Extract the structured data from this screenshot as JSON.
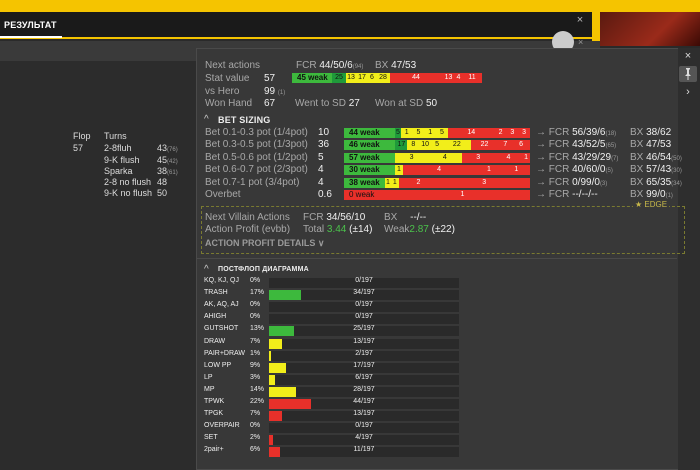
{
  "background": {
    "tab_result": "РЕЗУЛЬТАТ",
    "close_glyph": "×",
    "stats": {
      "flop_label": "Flop",
      "flop_value": "57",
      "turns_label": "Turns",
      "turns": [
        {
          "name": "2-8fluh",
          "value": "43",
          "sample": "(76)"
        },
        {
          "name": "9-K flush",
          "value": "45",
          "sample": "(42)"
        },
        {
          "name": "Sparka",
          "value": "38",
          "sample": "(61)"
        },
        {
          "name": "2-8 no flush",
          "value": "48",
          "sample": ""
        },
        {
          "name": "9-K no flush",
          "value": "50",
          "sample": ""
        }
      ]
    }
  },
  "hud": {
    "next_actions": {
      "label": "Next actions",
      "fcr_label": "FCR",
      "fcr_value": "44/50/6",
      "fcr_sample": "(94)",
      "bx_label": "BX",
      "bx_value": "47/53"
    },
    "stat_value": {
      "label": "Stat value",
      "value": "57",
      "weak_label": "45 weak",
      "segs": [
        "25",
        "13",
        "17",
        "6",
        "28",
        "44",
        "13",
        "4",
        "11"
      ]
    },
    "vs_hero": {
      "label": "vs Hero",
      "value": "99",
      "sample": "(1)"
    },
    "won_hand": {
      "label": "Won Hand",
      "value": "67"
    },
    "went_sd": {
      "label": "Went to SD",
      "value": "27"
    },
    "won_sd": {
      "label": "Won at SD",
      "value": "50"
    },
    "bet_sizing": {
      "title": "BET SIZING",
      "rows": [
        {
          "label": "Bet 0.1-0.3 pot (1/4pot)",
          "value": "10",
          "weak": "44 weak",
          "segs": [
            "5",
            "1",
            "5",
            "1",
            "5",
            "14",
            "2",
            "3",
            "3"
          ],
          "fcr": "56/39/6",
          "fcr_sample": "(18)",
          "bx": "38/62",
          "bx_sample": ""
        },
        {
          "label": "Bet 0.3-0.5 pot (1/3pot)",
          "value": "36",
          "weak": "46 weak",
          "segs": [
            "17",
            "8",
            "10",
            "5",
            "22",
            "22",
            "7",
            "6"
          ],
          "fcr": "43/52/5",
          "fcr_sample": "(65)",
          "bx": "47/53",
          "bx_sample": ""
        },
        {
          "label": "Bet 0.5-0.6 pot (1/2pot)",
          "value": "5",
          "weak": "57 weak",
          "segs": [
            "3",
            "4",
            "3",
            "4",
            "1"
          ],
          "fcr": "43/29/29",
          "fcr_sample": "(7)",
          "bx": "46/54",
          "bx_sample": "(50)"
        },
        {
          "label": "Bet 0.6-0.7 pot (2/3pot)",
          "value": "4",
          "weak": "30 weak",
          "segs": [
            "1",
            "4",
            "1",
            "1"
          ],
          "fcr": "40/60/0",
          "fcr_sample": "(5)",
          "bx": "57/43",
          "bx_sample": "(30)"
        },
        {
          "label": "Bet 0.7-1 pot   (3/4pot)",
          "value": "4",
          "weak": "38 weak",
          "segs": [
            "1",
            "1",
            "2",
            "3"
          ],
          "fcr": "0/99/0",
          "fcr_sample": "(3)",
          "bx": "65/35",
          "bx_sample": "(34)"
        },
        {
          "label": "Overbet",
          "value": "0.6",
          "weak": "0 weak",
          "segs": [
            "1"
          ],
          "fcr": "--/--/--",
          "fcr_sample": "",
          "bx": "99/0",
          "bx_sample": "(1)"
        }
      ],
      "arrow": "→",
      "fcr_label": "FCR",
      "bx_label": "BX"
    },
    "edge": {
      "label": "EDGE",
      "star": "★",
      "nva_label": "Next Villain Actions",
      "nva_fcr_label": "FCR",
      "nva_fcr_value": "34/56/10",
      "nva_bx_label": "BX",
      "nva_bx_value": "--/--",
      "ap_label": "Action Profit (evbb)",
      "ap_total_label": "Total",
      "ap_total_value": "3.44",
      "ap_total_extra": "(±14)",
      "ap_weak_label": "Weak",
      "ap_weak_value": "2.87",
      "ap_weak_extra": "(±22)",
      "details_label": "ACTION PROFIT DETAILS"
    },
    "diagram": {
      "title": "ПОСТФЛОП ДИАГРАММА",
      "rows": [
        {
          "name": "KQ, KJ, QJ",
          "pct": "0%",
          "count": "0/197",
          "fill": 0,
          "color": "#3db93d"
        },
        {
          "name": "TRASH",
          "pct": "17%",
          "count": "34/197",
          "fill": 0.17,
          "color": "#3db93d"
        },
        {
          "name": "AK, AQ, AJ",
          "pct": "0%",
          "count": "0/197",
          "fill": 0,
          "color": "#3db93d"
        },
        {
          "name": "AHIGH",
          "pct": "0%",
          "count": "0/197",
          "fill": 0,
          "color": "#3db93d"
        },
        {
          "name": "GUTSHOT",
          "pct": "13%",
          "count": "25/197",
          "fill": 0.13,
          "color": "#3db93d"
        },
        {
          "name": "DRAW",
          "pct": "7%",
          "count": "13/197",
          "fill": 0.07,
          "color": "#f2ee1a"
        },
        {
          "name": "PAIR+DRAW",
          "pct": "1%",
          "count": "2/197",
          "fill": 0.01,
          "color": "#f2ee1a"
        },
        {
          "name": "LOW PP",
          "pct": "9%",
          "count": "17/197",
          "fill": 0.09,
          "color": "#f2ee1a"
        },
        {
          "name": "LP",
          "pct": "3%",
          "count": "6/197",
          "fill": 0.03,
          "color": "#f2ee1a"
        },
        {
          "name": "MP",
          "pct": "14%",
          "count": "28/197",
          "fill": 0.14,
          "color": "#f2ee1a"
        },
        {
          "name": "TPWK",
          "pct": "22%",
          "count": "44/197",
          "fill": 0.22,
          "color": "#e8302a"
        },
        {
          "name": "TPGK",
          "pct": "7%",
          "count": "13/197",
          "fill": 0.07,
          "color": "#e8302a"
        },
        {
          "name": "OVERPAIR",
          "pct": "0%",
          "count": "0/197",
          "fill": 0,
          "color": "#e8302a"
        },
        {
          "name": "SET",
          "pct": "2%",
          "count": "4/197",
          "fill": 0.02,
          "color": "#e8302a"
        },
        {
          "name": "2pair+",
          "pct": "6%",
          "count": "11/197",
          "fill": 0.06,
          "color": "#e8302a"
        }
      ]
    },
    "side": {
      "close": "×",
      "pin": "📌",
      "expand": "›"
    },
    "caret": "^",
    "caret_down": "∨"
  }
}
